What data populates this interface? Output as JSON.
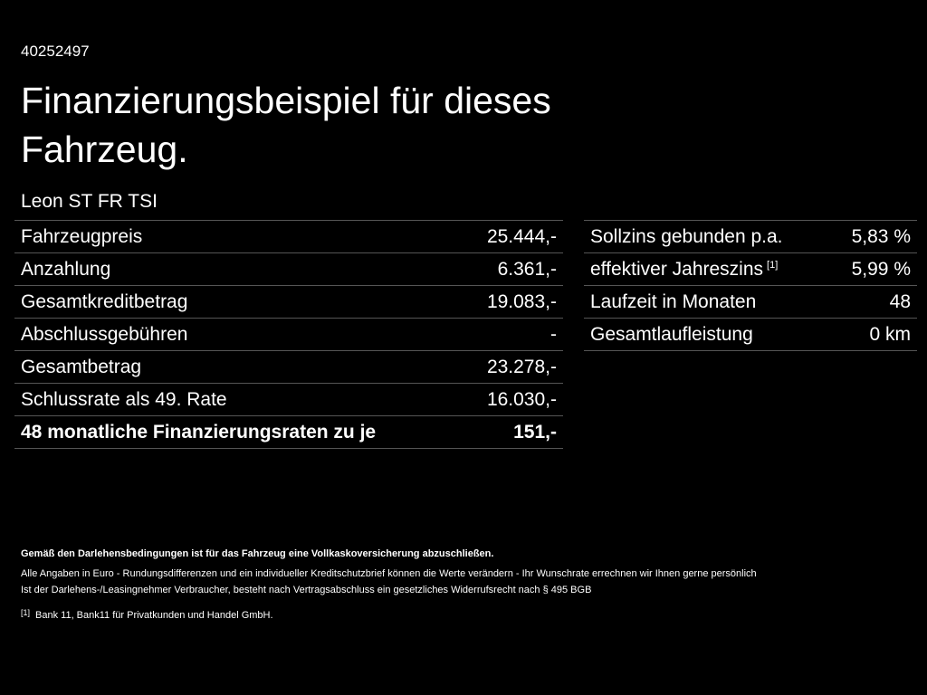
{
  "header": {
    "reference": "40252497",
    "title": "Finanzierungsbeispiel für dieses Fahrzeug.",
    "model": "Leon ST FR TSI"
  },
  "left_table": {
    "rows": [
      {
        "label": "Fahrzeugpreis",
        "value": "25.444,-"
      },
      {
        "label": "Anzahlung",
        "value": "6.361,-"
      },
      {
        "label": "Gesamtkreditbetrag",
        "value": "19.083,-"
      },
      {
        "label": "Abschlussgebühren",
        "value": "-"
      },
      {
        "label": "Gesamtbetrag",
        "value": "23.278,-"
      },
      {
        "label": "Schlussrate als 49. Rate",
        "value": "16.030,-"
      },
      {
        "label": "48 monatliche Finanzierungsraten zu je",
        "value": "151,-",
        "bold": true
      }
    ]
  },
  "right_table": {
    "rows": [
      {
        "label": "Sollzins gebunden p.a.",
        "value": "5,83 %"
      },
      {
        "label": "effektiver Jahreszins",
        "note": "[1]",
        "value": "5,99 %"
      },
      {
        "label": "Laufzeit in Monaten",
        "value": "48"
      },
      {
        "label": "Gesamtlaufleistung",
        "value": "0 km"
      }
    ]
  },
  "notes": [
    "Gemäß den Darlehensbedingungen ist für das Fahrzeug eine Vollkaskoversicherung abzuschließen.",
    "Alle Angaben in Euro - Rundungsdifferenzen und ein individueller Kreditschutzbrief können die Werte verändern - Ihr Wunschrate errechnen wir Ihnen gerne persönlich",
    "Ist der Darlehens-/Leasingnehmer Verbraucher, besteht nach Vertragsabschluss ein gesetzliches Widerrufsrecht nach § 495 BGB"
  ],
  "footnote": {
    "marker": "[1]",
    "text": "Bank 11, Bank11 für Privatkunden und Handel GmbH."
  }
}
